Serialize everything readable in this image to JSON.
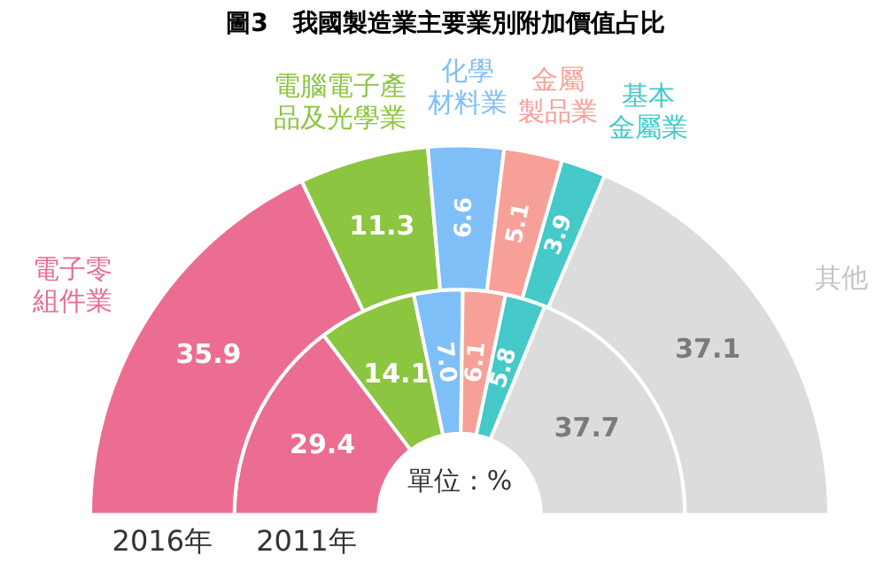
{
  "chart_data": {
    "type": "donut",
    "title": "圖3　我國製造業主要業別附加價值占比",
    "categories": [
      "電子零組件業",
      "電腦電子產品及光學業",
      "化學材料業",
      "金屬製品業",
      "基本金屬業",
      "其他"
    ],
    "colors": [
      "#eb6d91",
      "#8cc540",
      "#7fbff7",
      "#f7a097",
      "#45c9c9",
      "#dcdcdc"
    ],
    "series": [
      {
        "name": "2016年",
        "values": [
          35.9,
          11.3,
          6.6,
          5.1,
          3.9,
          37.1
        ],
        "value_labels": [
          "35.9",
          "11.3",
          "6.6",
          "5.1",
          "3.9",
          "37.1"
        ]
      },
      {
        "name": "2011年",
        "values": [
          29.4,
          14.1,
          7.0,
          6.1,
          5.8,
          37.7
        ],
        "value_labels": [
          "29.4",
          "14.1",
          "7.0",
          "6.1",
          "5.8",
          "37.7"
        ]
      }
    ],
    "legend": false,
    "annotations": [
      "單位：%"
    ]
  }
}
